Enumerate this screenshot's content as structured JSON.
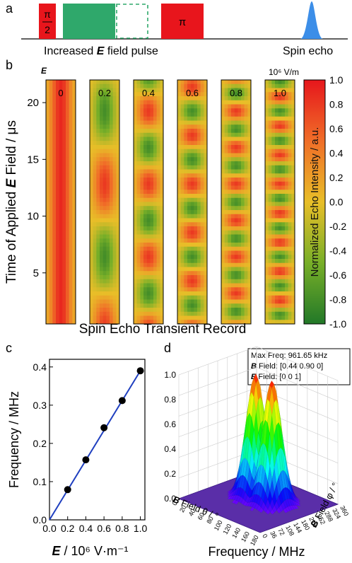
{
  "panel_a": {
    "label": "a",
    "pulse_pi2_num": "π",
    "pulse_pi2_den": "2",
    "pulse_pi": "π",
    "caption_pre": "Increased ",
    "caption_e": "E",
    "caption_post": " field pulse",
    "spin_echo": "Spin echo",
    "colors": {
      "pi_pulse": "#e8151c",
      "e_pulse": "#2fa86b",
      "echo": "#3c8ee8"
    }
  },
  "panel_b": {
    "label": "b",
    "e_header": "E",
    "unit_header": "10⁶ V/m",
    "ylabel_pre": "Time of Applied ",
    "ylabel_e": "E",
    "ylabel_post": " Field / μs",
    "xlabel": "Spin Echo Transient Record",
    "colorbar_label": "Normalized Echo Intensity / a.u.",
    "strips": [
      {
        "field": "0",
        "value": 0.0
      },
      {
        "field": "0.2",
        "value": 0.2
      },
      {
        "field": "0.4",
        "value": 0.4
      },
      {
        "field": "0.6",
        "value": 0.6
      },
      {
        "field": "0.8",
        "value": 0.8
      },
      {
        "field": "1.0",
        "value": 1.0
      }
    ],
    "y_ticks": [
      "5",
      "10",
      "15",
      "20"
    ],
    "colorbar_ticks": [
      "1.0",
      "0.8",
      "0.6",
      "0.4",
      "0.2",
      "0.0",
      "-0.2",
      "-0.4",
      "-0.6",
      "-0.8",
      "-1.0"
    ]
  },
  "panel_c": {
    "label": "c",
    "ylabel": "Frequency / MHz",
    "xlabel_e": "E",
    "xlabel_rest": " / 10⁶ V·m⁻¹",
    "x_ticks": [
      "0.0",
      "0.2",
      "0.4",
      "0.6",
      "0.8",
      "1.0"
    ],
    "y_ticks": [
      "0.0",
      "0.1",
      "0.2",
      "0.3",
      "0.4"
    ]
  },
  "panel_d": {
    "label": "d",
    "info_max_freq": "Max Freq: 961.65 kHz",
    "info_b_label": "B",
    "info_b_rest": " Field:   [0.44 0.90 0]",
    "info_e_label": "E",
    "info_e_rest": " Field:   [0 0 1]",
    "z_ticks": [
      "0.0",
      "0.2",
      "0.4",
      "0.6",
      "0.8",
      "1.0"
    ],
    "theta_label_b": "B",
    "theta_label_rest": " Field θ / °",
    "phi_label_b": "B",
    "phi_label_rest": " Field φ / °",
    "theta_ticks": [
      "0",
      "20",
      "40",
      "60",
      "80",
      "100",
      "120",
      "140",
      "160",
      "180"
    ],
    "phi_ticks": [
      "0",
      "36",
      "72",
      "108",
      "144",
      "180",
      "216",
      "252",
      "288",
      "324",
      "360"
    ],
    "xlabel": "Frequency / MHz"
  },
  "chart_data": [
    {
      "type": "heatmap",
      "title": "",
      "xlabel": "Spin Echo Transient Record",
      "ylabel": "Time of Applied E Field / μs",
      "ylim": [
        0.5,
        22
      ],
      "fields_1e6_V_per_m": [
        0,
        0.2,
        0.4,
        0.6,
        0.8,
        1.0
      ],
      "colorbar_range": [
        -1.0,
        1.0
      ],
      "colorbar_label": "Normalized Echo Intensity / a.u."
    },
    {
      "type": "scatter",
      "title": "",
      "xlabel": "E / 10⁶ V·m⁻¹",
      "ylabel": "Frequency / MHz",
      "xlim": [
        0,
        1.05
      ],
      "ylim": [
        0,
        0.42
      ],
      "series": [
        {
          "name": "",
          "x": [
            0.2,
            0.4,
            0.6,
            0.8,
            1.0
          ],
          "y": [
            0.079,
            0.157,
            0.241,
            0.312,
            0.39
          ]
        }
      ],
      "fit_line": {
        "x": [
          0,
          1.0
        ],
        "y": [
          0,
          0.39
        ]
      }
    },
    {
      "type": "area",
      "title": "",
      "zlabel": "Frequency / MHz",
      "xlabel": "B Field θ / °",
      "ylabel": "B Field φ / °",
      "zlim": [
        0,
        1.0
      ],
      "peaks": 2,
      "max_freq_kHz": 961.65
    }
  ]
}
